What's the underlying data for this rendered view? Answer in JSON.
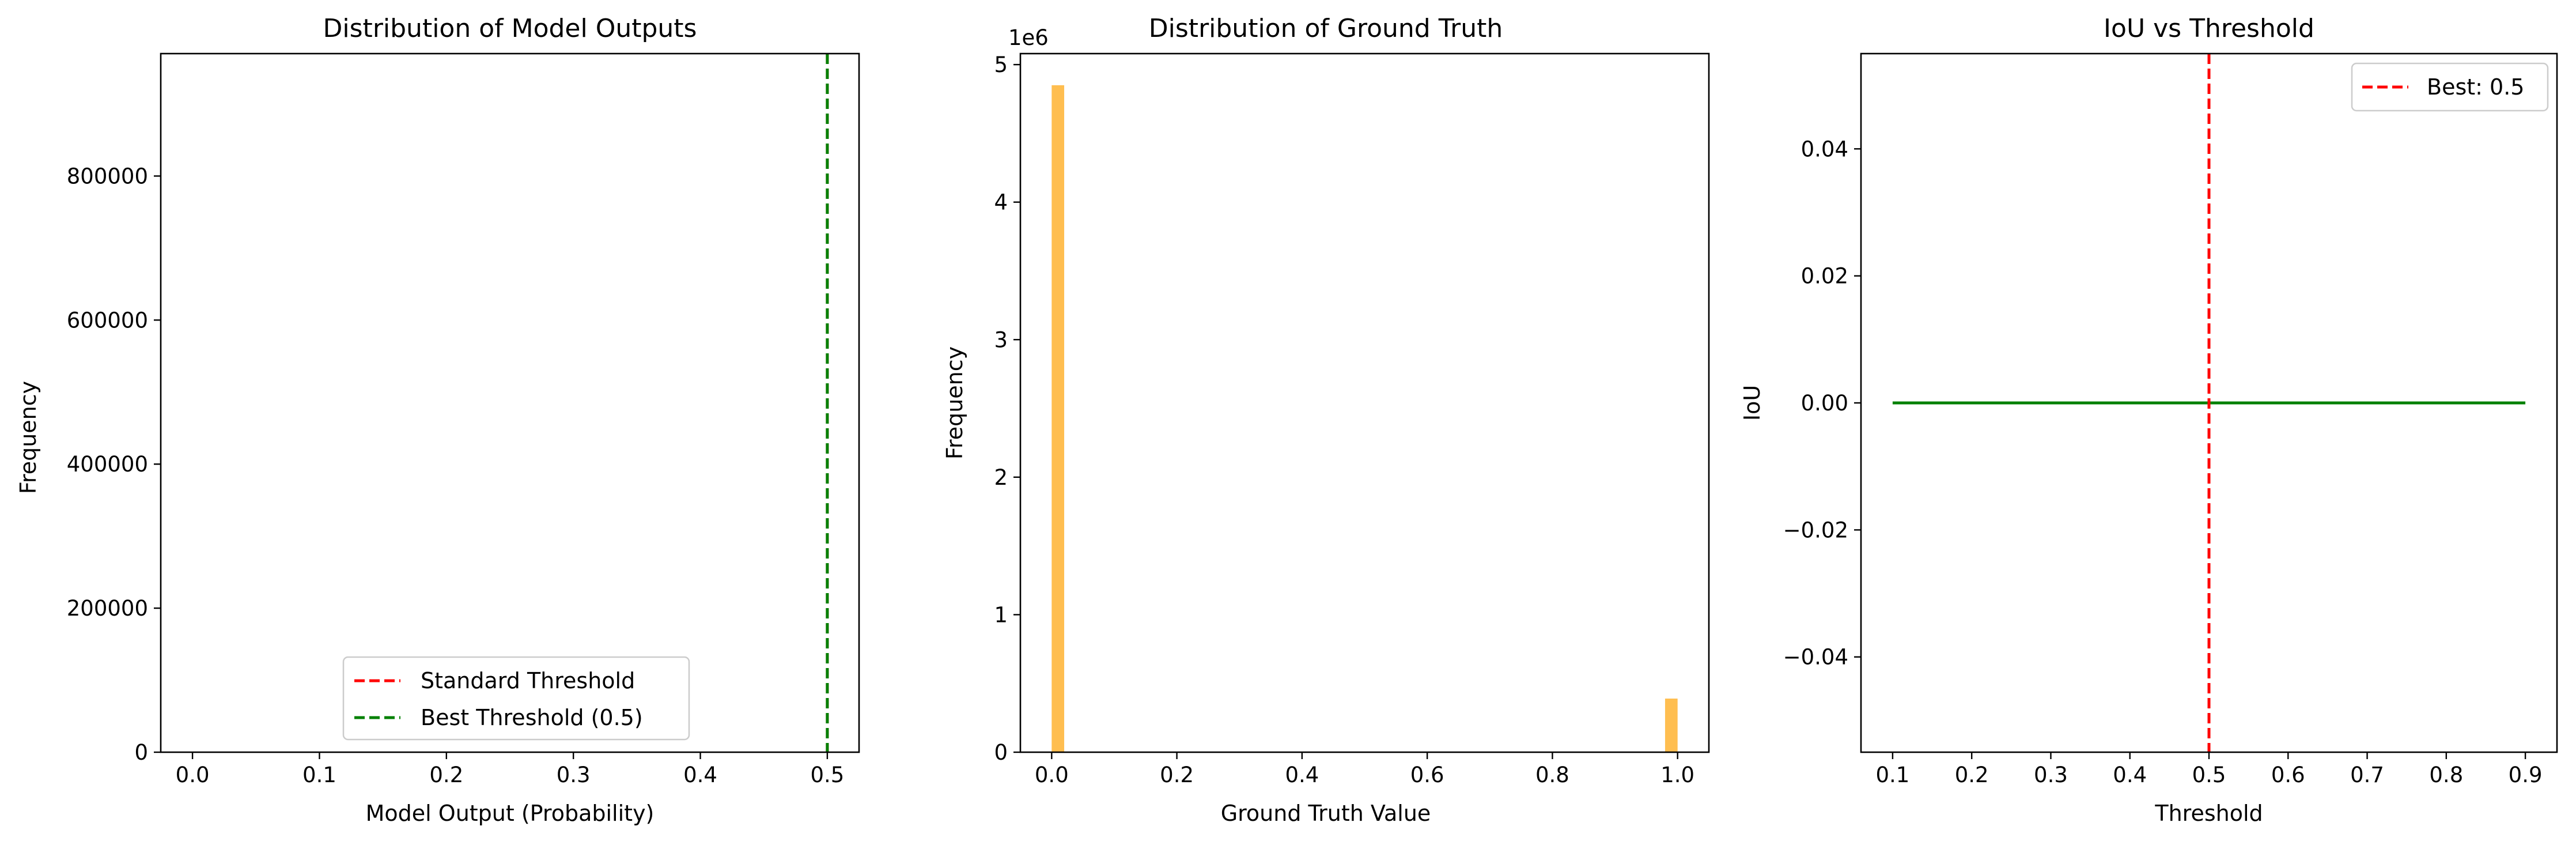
{
  "chart_data": [
    {
      "type": "histogram",
      "title": "Distribution of Model Outputs",
      "xlabel": "Model Output (Probability)",
      "ylabel": "Frequency",
      "xlim": [
        -0.025,
        0.525
      ],
      "ylim": [
        0,
        970000
      ],
      "xticks": [
        "0.0",
        "0.1",
        "0.2",
        "0.3",
        "0.4",
        "0.5"
      ],
      "yticks": [
        "0",
        "200000",
        "400000",
        "600000",
        "800000"
      ],
      "bars": [],
      "vlines": [
        {
          "x": 0.5,
          "color": "#ff0000",
          "style": "dashed",
          "label": "Standard Threshold"
        },
        {
          "x": 0.5,
          "color": "#008000",
          "style": "dashed",
          "label": "Best Threshold (0.5)"
        }
      ],
      "legend": {
        "position": "lower-center",
        "entries": [
          "Standard Threshold",
          "Best Threshold (0.5)"
        ]
      }
    },
    {
      "type": "histogram",
      "title": "Distribution of Ground Truth",
      "xlabel": "Ground Truth Value",
      "ylabel": "Frequency",
      "offset_text": "1e6",
      "xlim": [
        -0.05,
        1.05
      ],
      "ylim": [
        0,
        5.08
      ],
      "xticks": [
        "0.0",
        "0.2",
        "0.4",
        "0.6",
        "0.8",
        "1.0"
      ],
      "yticks": [
        "0",
        "1",
        "2",
        "3",
        "4",
        "5"
      ],
      "color": "#ffbb47",
      "bars": [
        {
          "x0": 0.0,
          "x1": 0.02,
          "value": 4.85
        },
        {
          "x0": 0.98,
          "x1": 1.0,
          "value": 0.39
        }
      ]
    },
    {
      "type": "line",
      "title": "IoU vs Threshold",
      "xlabel": "Threshold",
      "ylabel": "IoU",
      "xlim": [
        0.06,
        0.94
      ],
      "ylim": [
        -0.055,
        0.055
      ],
      "xticks": [
        "0.1",
        "0.2",
        "0.3",
        "0.4",
        "0.5",
        "0.6",
        "0.7",
        "0.8",
        "0.9"
      ],
      "yticks": [
        "−0.04",
        "−0.02",
        "0.00",
        "0.02",
        "0.04"
      ],
      "series": [
        {
          "color": "#008000",
          "x": [
            0.1,
            0.2,
            0.3,
            0.4,
            0.5,
            0.6,
            0.7,
            0.8,
            0.9
          ],
          "y": [
            0,
            0,
            0,
            0,
            0,
            0,
            0,
            0,
            0
          ]
        }
      ],
      "vlines": [
        {
          "x": 0.5,
          "color": "#ff0000",
          "style": "dashed",
          "label": "Best: 0.5"
        }
      ],
      "legend": {
        "position": "top-right",
        "entries": [
          "Best: 0.5"
        ]
      }
    }
  ]
}
